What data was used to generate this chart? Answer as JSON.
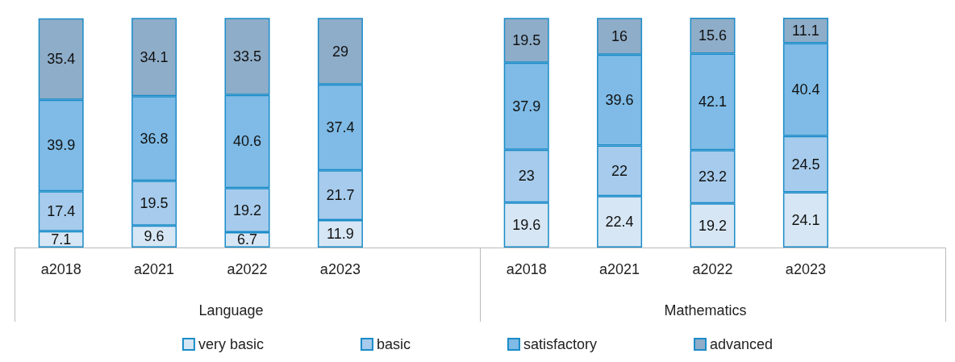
{
  "chart_data": {
    "type": "bar",
    "stacked": true,
    "categories": [
      "a2018",
      "a2021",
      "a2022",
      "a2023",
      null,
      "a2018",
      "a2021",
      "a2022",
      "a2023",
      null
    ],
    "series": [
      {
        "name": "very basic",
        "color": "#d6e6f4",
        "values": [
          7.1,
          9.6,
          6.7,
          11.9,
          null,
          19.6,
          22.4,
          19.2,
          24.1,
          null
        ]
      },
      {
        "name": "basic",
        "color": "#a6cbec",
        "values": [
          17.4,
          19.5,
          19.2,
          21.7,
          null,
          23,
          22,
          23.2,
          24.5,
          null
        ]
      },
      {
        "name": "satisfactory",
        "color": "#7fbbe6",
        "values": [
          39.9,
          36.8,
          40.6,
          37.4,
          null,
          37.9,
          39.6,
          42.1,
          40.4,
          null
        ]
      },
      {
        "name": "advanced",
        "color": "#8eadc9",
        "values": [
          35.4,
          34.1,
          33.5,
          29,
          null,
          19.5,
          16,
          15.6,
          11.1,
          null
        ]
      }
    ],
    "annotations": [
      "Language",
      "Mathematics"
    ],
    "data_labels": true,
    "legend": "bottom",
    "grid": false
  }
}
